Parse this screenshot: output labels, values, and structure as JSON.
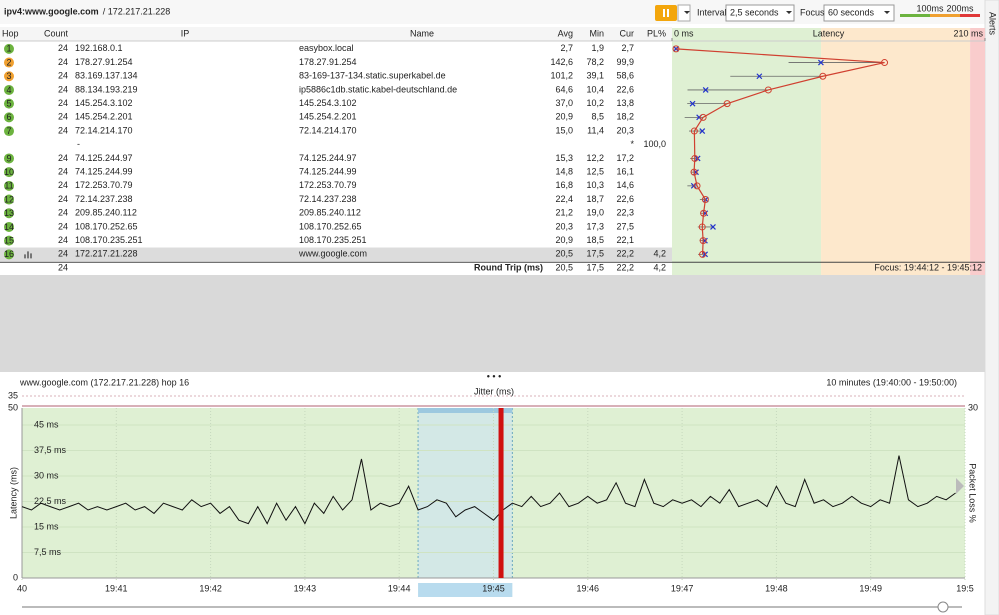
{
  "header": {
    "target": "ipv4:www.google.com",
    "address": "/ 172.217.21.228",
    "interval_label": "Interval",
    "interval_value": "2,5 seconds",
    "focus_label": "Focus",
    "focus_value": "60 seconds",
    "alerts": "Alerts"
  },
  "latency_axis": {
    "title": "Latency",
    "xlim": [
      0,
      210
    ],
    "xticks": [
      {
        "value": 0,
        "label": "0 ms"
      },
      {
        "value": 210,
        "label": "210 ms"
      }
    ],
    "thresholds": [
      {
        "value": 100,
        "label": "100ms",
        "color": "#6cb33f",
        "band": "#dff0d3"
      },
      {
        "value": 200,
        "label": "200ms",
        "color": "#f0a030",
        "band": "#fde8cc"
      },
      {
        "value": 210,
        "color": "#e03838",
        "band": "#f9cccc"
      }
    ]
  },
  "table": {
    "headers": [
      "Hop",
      "Count",
      "IP",
      "Name",
      "Avg",
      "Min",
      "Cur",
      "PL%"
    ],
    "rows": [
      {
        "hop": 1,
        "count": 24,
        "ip": "192.168.0.1",
        "name": "easybox.local",
        "avg": {
          "value": 2.7,
          "label": "2,7"
        },
        "min": {
          "value": 1.9,
          "label": "1,9"
        },
        "cur": {
          "value": 2.7,
          "label": "2,7"
        },
        "color": "#6cb33f"
      },
      {
        "hop": 2,
        "count": 24,
        "ip": "178.27.91.254",
        "name": "178.27.91.254",
        "avg": {
          "value": 142.6,
          "label": "142,6"
        },
        "min": {
          "value": 78.2,
          "label": "78,2"
        },
        "cur": {
          "value": 99.9,
          "label": "99,9"
        },
        "color": "#f0a030"
      },
      {
        "hop": 3,
        "count": 24,
        "ip": "83.169.137.134",
        "name": "83-169-137-134.static.superkabel.de",
        "avg": {
          "value": 101.2,
          "label": "101,2"
        },
        "min": {
          "value": 39.1,
          "label": "39,1"
        },
        "cur": {
          "value": 58.6,
          "label": "58,6"
        },
        "color": "#f0a030"
      },
      {
        "hop": 4,
        "count": 24,
        "ip": "88.134.193.219",
        "name": "ip5886c1db.static.kabel-deutschland.de",
        "avg": {
          "value": 64.6,
          "label": "64,6"
        },
        "min": {
          "value": 10.4,
          "label": "10,4"
        },
        "cur": {
          "value": 22.6,
          "label": "22,6"
        },
        "color": "#6cb33f"
      },
      {
        "hop": 5,
        "count": 24,
        "ip": "145.254.3.102",
        "name": "145.254.3.102",
        "avg": {
          "value": 37.0,
          "label": "37,0"
        },
        "min": {
          "value": 10.2,
          "label": "10,2"
        },
        "cur": {
          "value": 13.8,
          "label": "13,8"
        },
        "color": "#6cb33f"
      },
      {
        "hop": 6,
        "count": 24,
        "ip": "145.254.2.201",
        "name": "145.254.2.201",
        "avg": {
          "value": 20.9,
          "label": "20,9"
        },
        "min": {
          "value": 8.5,
          "label": "8,5"
        },
        "cur": {
          "value": 18.2,
          "label": "18,2"
        },
        "color": "#6cb33f"
      },
      {
        "hop": 7,
        "count": 24,
        "ip": "72.14.214.170",
        "name": "72.14.214.170",
        "avg": {
          "value": 15.0,
          "label": "15,0"
        },
        "min": {
          "value": 11.4,
          "label": "11,4"
        },
        "cur": {
          "value": 20.3,
          "label": "20,3"
        },
        "color": "#6cb33f"
      },
      {
        "ip": "-",
        "cur": "*",
        "pl": {
          "value": 100,
          "label": "100,0"
        }
      },
      {
        "hop": 9,
        "count": 24,
        "ip": "74.125.244.97",
        "name": "74.125.244.97",
        "avg": {
          "value": 15.3,
          "label": "15,3"
        },
        "min": {
          "value": 12.2,
          "label": "12,2"
        },
        "cur": {
          "value": 17.2,
          "label": "17,2"
        },
        "color": "#6cb33f"
      },
      {
        "hop": 10,
        "count": 24,
        "ip": "74.125.244.99",
        "name": "74.125.244.99",
        "avg": {
          "value": 14.8,
          "label": "14,8"
        },
        "min": {
          "value": 12.5,
          "label": "12,5"
        },
        "cur": {
          "value": 16.1,
          "label": "16,1"
        },
        "color": "#6cb33f"
      },
      {
        "hop": 11,
        "count": 24,
        "ip": "172.253.70.79",
        "name": "172.253.70.79",
        "avg": {
          "value": 16.8,
          "label": "16,8"
        },
        "min": {
          "value": 10.3,
          "label": "10,3"
        },
        "cur": {
          "value": 14.6,
          "label": "14,6"
        },
        "color": "#6cb33f"
      },
      {
        "hop": 12,
        "count": 24,
        "ip": "72.14.237.238",
        "name": "72.14.237.238",
        "avg": {
          "value": 22.4,
          "label": "22,4"
        },
        "min": {
          "value": 18.7,
          "label": "18,7"
        },
        "cur": {
          "value": 22.6,
          "label": "22,6"
        },
        "color": "#6cb33f"
      },
      {
        "hop": 13,
        "count": 24,
        "ip": "209.85.240.112",
        "name": "209.85.240.112",
        "avg": {
          "value": 21.2,
          "label": "21,2"
        },
        "min": {
          "value": 19.0,
          "label": "19,0"
        },
        "cur": {
          "value": 22.3,
          "label": "22,3"
        },
        "color": "#6cb33f"
      },
      {
        "hop": 14,
        "count": 24,
        "ip": "108.170.252.65",
        "name": "108.170.252.65",
        "avg": {
          "value": 20.3,
          "label": "20,3"
        },
        "min": {
          "value": 17.3,
          "label": "17,3"
        },
        "cur": {
          "value": 27.5,
          "label": "27,5"
        },
        "color": "#6cb33f"
      },
      {
        "hop": 15,
        "count": 24,
        "ip": "108.170.235.251",
        "name": "108.170.235.251",
        "avg": {
          "value": 20.9,
          "label": "20,9"
        },
        "min": {
          "value": 18.5,
          "label": "18,5"
        },
        "cur": {
          "value": 22.1,
          "label": "22,1"
        },
        "color": "#6cb33f"
      },
      {
        "hop": 16,
        "count": 24,
        "ip": "172.217.21.228",
        "name": "www.google.com",
        "avg": {
          "value": 20.5,
          "label": "20,5"
        },
        "min": {
          "value": 17.5,
          "label": "17,5"
        },
        "cur": {
          "value": 22.2,
          "label": "22,2"
        },
        "pl": {
          "value": 4.2,
          "label": "4,2"
        },
        "color": "#6cb33f",
        "selected": true
      }
    ],
    "summary": {
      "count": 24,
      "label": "Round Trip (ms)",
      "avg": {
        "value": 20.5,
        "label": "20,5"
      },
      "min": {
        "value": 17.5,
        "label": "17,5"
      },
      "cur": {
        "value": 22.2,
        "label": "22,2"
      },
      "pl": {
        "value": 4.2,
        "label": "4,2"
      },
      "focus": "Focus: 19:44:12 - 19:45:12"
    }
  },
  "chart_data": {
    "type": "line",
    "title": "www.google.com (172.217.21.228) hop 16",
    "range_label": "10 minutes (19:40:00 - 19:50:00)",
    "jitter_title": "Jitter (ms)",
    "jitter_max": 35,
    "ylabel": "Latency (ms)",
    "y2label": "Packet Loss %",
    "xlim": [
      0,
      10
    ],
    "ylim": [
      0,
      50
    ],
    "yticks": [
      0,
      50
    ],
    "y2lim": [
      0,
      30
    ],
    "y2ticks": [
      30
    ],
    "inner_ticks": [
      {
        "value": 45,
        "label": "45 ms"
      },
      {
        "value": 37.5,
        "label": "37,5 ms"
      },
      {
        "value": 30,
        "label": "30 ms"
      },
      {
        "value": 22.5,
        "label": "22,5 ms"
      },
      {
        "value": 15,
        "label": "15 ms"
      },
      {
        "value": 7.5,
        "label": "7,5 ms"
      }
    ],
    "xticks": [
      {
        "value": 0,
        "label": "40"
      },
      {
        "value": 1,
        "label": "19:41"
      },
      {
        "value": 2,
        "label": "19:42"
      },
      {
        "value": 3,
        "label": "19:43"
      },
      {
        "value": 4,
        "label": "19:44"
      },
      {
        "value": 5,
        "label": "19:45"
      },
      {
        "value": 6,
        "label": "19:46"
      },
      {
        "value": 7,
        "label": "19:47"
      },
      {
        "value": 8,
        "label": "19:48"
      },
      {
        "value": 9,
        "label": "19:49"
      },
      {
        "value": 10,
        "label": "19:5"
      }
    ],
    "focus": [
      4.2,
      5.2
    ],
    "x": [
      0,
      0.1,
      0.2,
      0.3,
      0.4,
      0.5,
      0.6,
      0.7,
      0.8,
      0.9,
      1,
      1.1,
      1.2,
      1.3,
      1.4,
      1.5,
      1.6,
      1.7,
      1.8,
      1.9,
      2,
      2.1,
      2.2,
      2.3,
      2.4,
      2.5,
      2.6,
      2.7,
      2.8,
      2.9,
      3,
      3.1,
      3.2,
      3.3,
      3.4,
      3.5,
      3.6,
      3.7,
      3.8,
      3.9,
      4,
      4.1,
      4.2,
      4.3,
      4.4,
      4.5,
      4.6,
      4.7,
      4.8,
      4.9,
      5,
      5.1,
      5.2,
      5.3,
      5.4,
      5.5,
      5.6,
      5.7,
      5.8,
      5.9,
      6,
      6.1,
      6.2,
      6.3,
      6.4,
      6.5,
      6.6,
      6.7,
      6.8,
      6.9,
      7,
      7.1,
      7.2,
      7.3,
      7.4,
      7.5,
      7.6,
      7.7,
      7.8,
      7.9,
      8,
      8.1,
      8.2,
      8.3,
      8.4,
      8.5,
      8.6,
      8.7,
      8.8,
      8.9,
      9,
      9.1,
      9.2,
      9.3,
      9.4,
      9.5,
      9.6,
      9.7,
      9.8,
      9.9
    ],
    "series": [
      {
        "name": "Latency",
        "color": "#111111",
        "values": [
          21,
          20,
          22,
          21,
          20,
          21,
          22,
          20,
          21,
          20,
          21,
          22,
          20,
          21,
          19,
          22,
          21,
          20,
          23,
          21,
          22,
          19,
          21,
          17,
          16,
          21,
          16,
          22,
          17,
          21,
          16,
          22,
          19,
          24,
          20,
          23,
          35,
          20,
          22,
          21,
          22,
          27,
          20,
          21,
          23,
          22,
          18,
          20,
          21,
          19,
          17,
          20,
          22,
          21,
          24,
          21,
          22,
          25,
          21,
          22,
          24,
          22,
          23,
          28,
          22,
          21,
          29,
          22,
          21,
          23,
          22,
          23,
          21,
          24,
          22,
          26,
          21,
          22,
          23,
          21,
          27,
          22,
          21,
          29,
          22,
          23,
          21,
          22,
          24,
          22,
          21,
          23,
          22,
          36,
          23,
          21,
          22,
          24,
          23,
          25
        ]
      },
      {
        "name": "Packet Loss",
        "color": "#d01010",
        "axis": "y2",
        "x": [
          5.08
        ],
        "values": [
          30
        ]
      }
    ]
  }
}
